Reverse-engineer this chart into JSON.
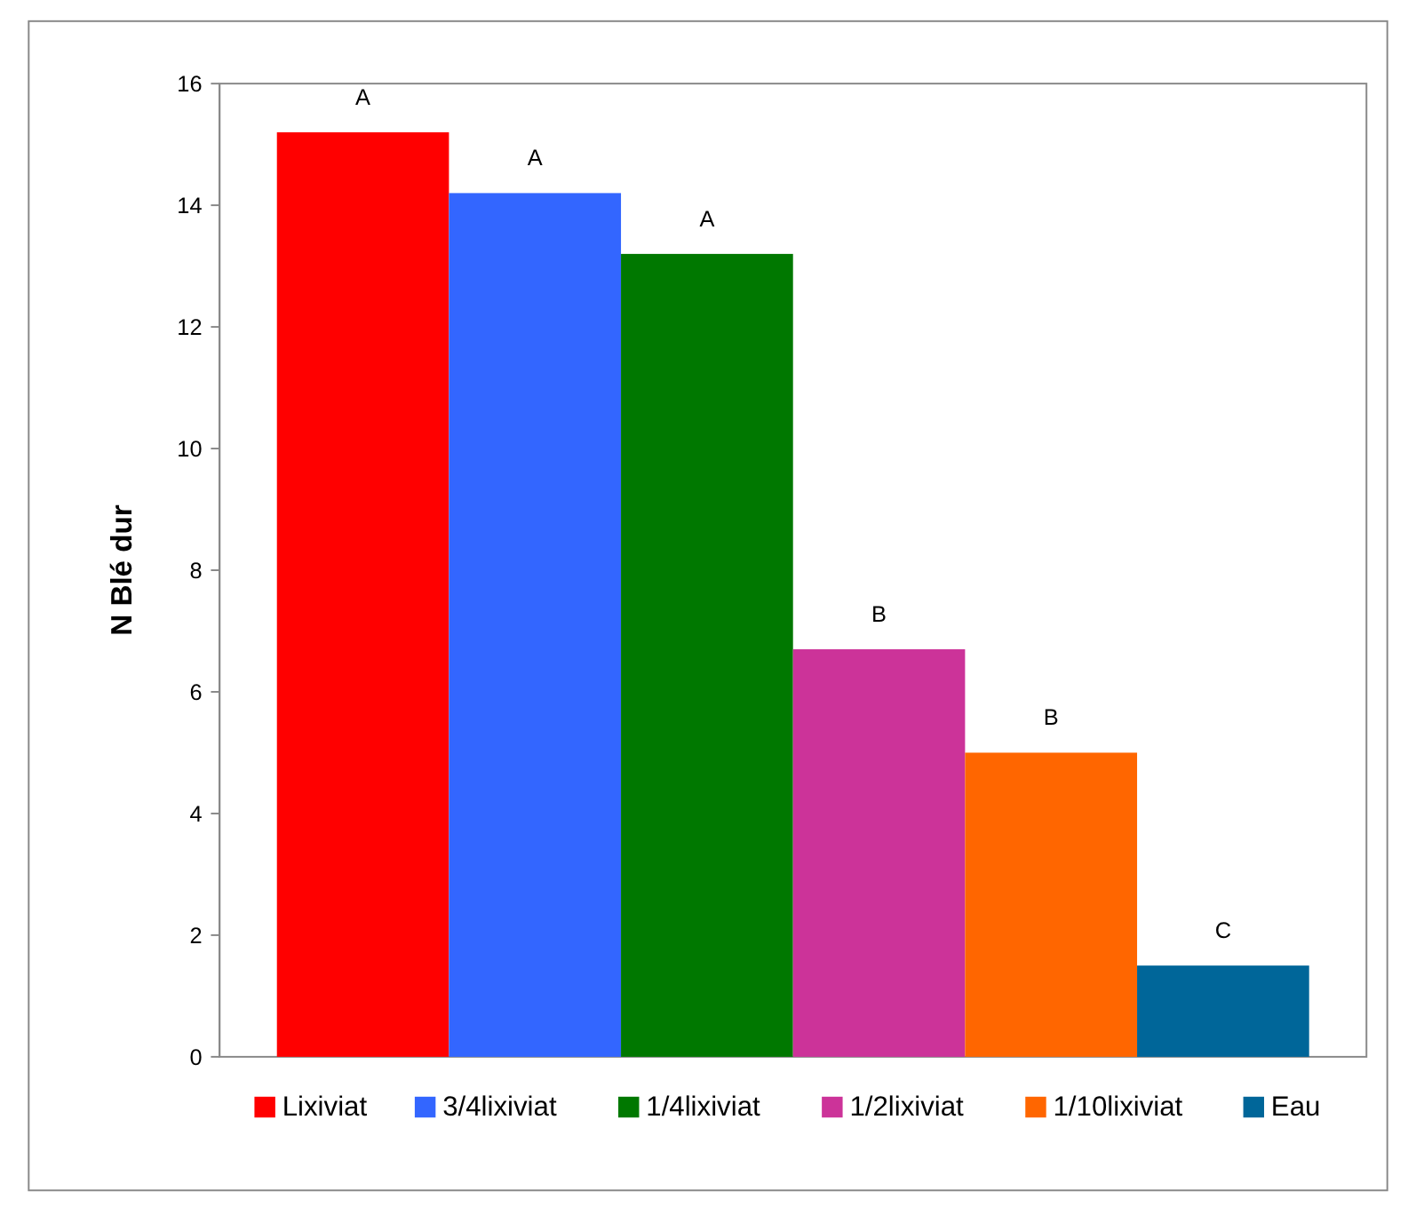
{
  "chart_data": {
    "type": "bar",
    "ylabel": "N Blé dur",
    "categories": [
      null
    ],
    "series": [
      {
        "name": "Lixiviat",
        "color": "#ff0000",
        "values": [
          15.2
        ],
        "value_labels": [
          "A"
        ]
      },
      {
        "name": "3/4lixiviat",
        "color": "#3366ff",
        "values": [
          14.2
        ],
        "value_labels": [
          "A"
        ]
      },
      {
        "name": "1/4lixiviat",
        "color": "#007800",
        "values": [
          13.2
        ],
        "value_labels": [
          "A"
        ]
      },
      {
        "name": "1/2lixiviat",
        "color": "#cc3399",
        "values": [
          6.7
        ],
        "value_labels": [
          "B"
        ]
      },
      {
        "name": "1/10lixiviat",
        "color": "#ff6600",
        "values": [
          5.0
        ],
        "value_labels": [
          "B"
        ]
      },
      {
        "name": "Eau",
        "color": "#006699",
        "values": [
          1.5
        ],
        "value_labels": [
          "C"
        ]
      }
    ],
    "ylim": [
      0,
      16
    ],
    "yticks": [
      0,
      2,
      4,
      6,
      8,
      10,
      12,
      14,
      16
    ],
    "grid": false,
    "legend": "bottom"
  }
}
